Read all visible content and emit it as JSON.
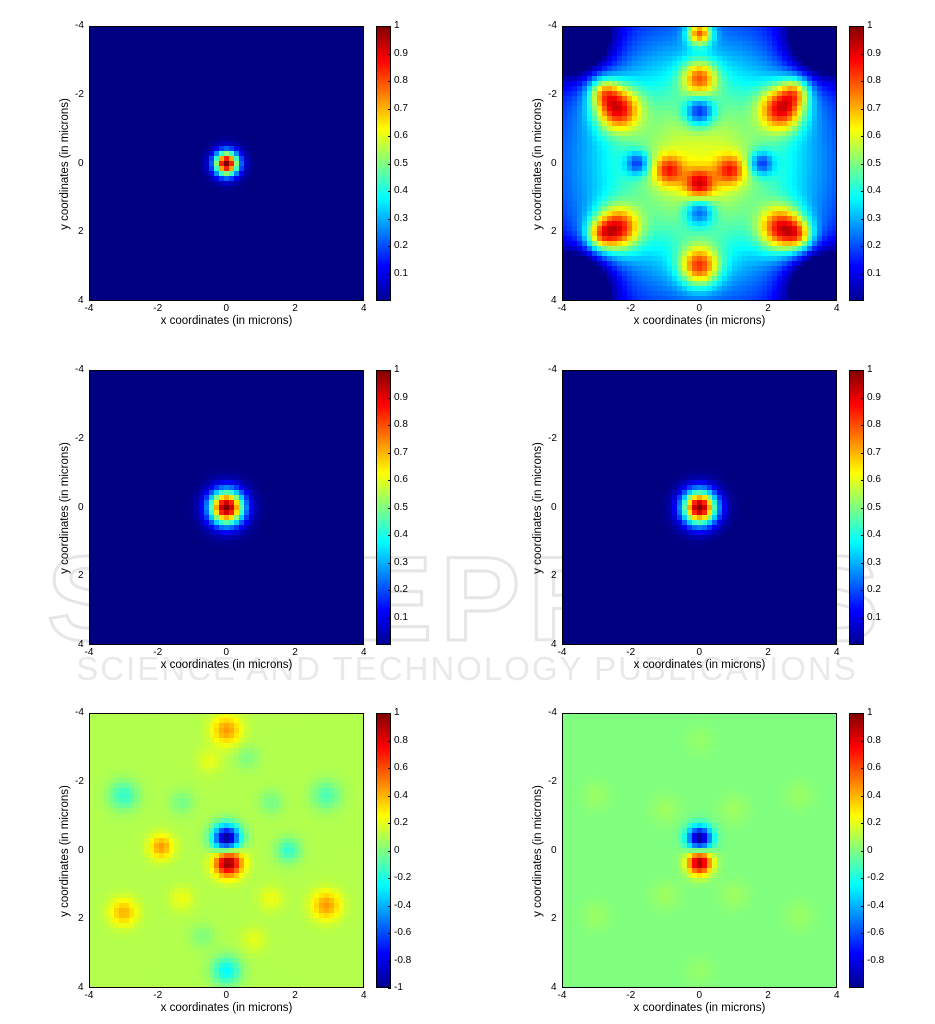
{
  "watermark": {
    "line1": "SCITEPRESS",
    "line2": "SCIENCE AND TECHNOLOGY PUBLICATIONS"
  },
  "chart_data": [
    {
      "type": "heatmap",
      "panel": "row1-left",
      "title": "",
      "xlabel": "x coordinates (in microns)",
      "ylabel": "y coordinates (in microns)",
      "xlim": [
        -4,
        4
      ],
      "ylim": [
        4,
        -4
      ],
      "xticks": [
        "-4",
        "-2",
        "0",
        "2",
        "4"
      ],
      "yticks": [
        "-4",
        "-2",
        "0",
        "2",
        "4"
      ],
      "colorbar": {
        "min": 0,
        "max": 1,
        "ticks": [
          "0.1",
          "0.2",
          "0.3",
          "0.4",
          "0.5",
          "0.6",
          "0.7",
          "0.8",
          "0.9",
          "1"
        ],
        "colormap": "jet"
      },
      "background_value": 0,
      "features": [
        {
          "x": 0,
          "y": 0,
          "sigma": 0.25,
          "value": 1
        }
      ]
    },
    {
      "type": "heatmap",
      "panel": "row1-right",
      "title": "",
      "xlabel": "x coordinates (in microns)",
      "ylabel": "y coordinates (in microns)",
      "xlim": [
        -4,
        4
      ],
      "ylim": [
        4,
        -4
      ],
      "xticks": [
        "-4",
        "-2",
        "0",
        "2",
        "4"
      ],
      "yticks": [
        "-4",
        "-2",
        "0",
        "2",
        "4"
      ],
      "colorbar": {
        "min": 0,
        "max": 1,
        "ticks": [
          "0.1",
          "0.2",
          "0.3",
          "0.4",
          "0.5",
          "0.6",
          "0.7",
          "0.8",
          "0.9",
          "1"
        ],
        "colormap": "jet"
      },
      "background_value": 0.05,
      "features": [
        {
          "x": 0,
          "y": 0,
          "sigma": 2.6,
          "value": 0.55
        },
        {
          "x": -2.4,
          "y": -1.6,
          "sigma": 0.45,
          "value": 0.55
        },
        {
          "x": 2.4,
          "y": -1.6,
          "sigma": 0.45,
          "value": 0.55
        },
        {
          "x": -2.4,
          "y": 1.9,
          "sigma": 0.45,
          "value": 0.55
        },
        {
          "x": 2.4,
          "y": 1.9,
          "sigma": 0.45,
          "value": 0.55
        },
        {
          "x": -2.8,
          "y": -2.1,
          "sigma": 0.3,
          "value": 0.3
        },
        {
          "x": 2.8,
          "y": -2.1,
          "sigma": 0.3,
          "value": 0.3
        },
        {
          "x": -2.9,
          "y": 2.1,
          "sigma": 0.3,
          "value": 0.3
        },
        {
          "x": 2.9,
          "y": 2.1,
          "sigma": 0.3,
          "value": 0.3
        },
        {
          "x": 0,
          "y": -3.8,
          "sigma": 0.25,
          "value": 0.55
        },
        {
          "x": 0,
          "y": -2.5,
          "sigma": 0.35,
          "value": 0.4
        },
        {
          "x": 0,
          "y": 3.0,
          "sigma": 0.4,
          "value": 0.5
        },
        {
          "x": 0,
          "y": 0.6,
          "sigma": 0.3,
          "value": 0.35
        },
        {
          "x": -0.9,
          "y": 0.2,
          "sigma": 0.3,
          "value": 0.3
        },
        {
          "x": 0.9,
          "y": 0.2,
          "sigma": 0.3,
          "value": 0.3
        },
        {
          "x": 0,
          "y": -1.5,
          "sigma": 0.3,
          "value": -0.35
        },
        {
          "x": 0,
          "y": 1.4,
          "sigma": 0.3,
          "value": -0.3
        },
        {
          "x": -1.8,
          "y": 0,
          "sigma": 0.25,
          "value": -0.3
        },
        {
          "x": 1.8,
          "y": 0,
          "sigma": 0.25,
          "value": -0.3
        },
        {
          "x": -3.6,
          "y": -3.6,
          "sigma": 0.7,
          "value": -0.45
        },
        {
          "x": 3.6,
          "y": -3.6,
          "sigma": 0.7,
          "value": -0.45
        },
        {
          "x": -3.6,
          "y": 3.6,
          "sigma": 0.7,
          "value": -0.45
        },
        {
          "x": 3.6,
          "y": 3.6,
          "sigma": 0.7,
          "value": -0.45
        }
      ]
    },
    {
      "type": "heatmap",
      "panel": "row2-left",
      "title": "",
      "xlabel": "x coordinates (in microns)",
      "ylabel": "y coordinates (in microns)",
      "xlim": [
        -4,
        4
      ],
      "ylim": [
        4,
        -4
      ],
      "xticks": [
        "-4",
        "-2",
        "0",
        "2",
        "4"
      ],
      "yticks": [
        "-4",
        "-2",
        "0",
        "2",
        "4"
      ],
      "colorbar": {
        "min": 0,
        "max": 1,
        "ticks": [
          "0.1",
          "0.2",
          "0.3",
          "0.4",
          "0.5",
          "0.6",
          "0.7",
          "0.8",
          "0.9",
          "1"
        ],
        "colormap": "jet"
      },
      "background_value": 0,
      "features": [
        {
          "x": 0,
          "y": 0,
          "sigma": 0.35,
          "value": 1
        }
      ]
    },
    {
      "type": "heatmap",
      "panel": "row2-right",
      "title": "",
      "xlabel": "x coordinates (in microns)",
      "ylabel": "y coordinates (in microns)",
      "xlim": [
        -4,
        4
      ],
      "ylim": [
        4,
        -4
      ],
      "xticks": [
        "-4",
        "-2",
        "0",
        "2",
        "4"
      ],
      "yticks": [
        "-4",
        "-2",
        "0",
        "2",
        "4"
      ],
      "colorbar": {
        "min": 0,
        "max": 1,
        "ticks": [
          "0.1",
          "0.2",
          "0.3",
          "0.4",
          "0.5",
          "0.6",
          "0.7",
          "0.8",
          "0.9",
          "1"
        ],
        "colormap": "jet"
      },
      "background_value": 0,
      "features": [
        {
          "x": 0,
          "y": 0,
          "sigma": 0.35,
          "value": 1
        }
      ]
    },
    {
      "type": "heatmap",
      "panel": "row3-left",
      "title": "",
      "xlabel": "x coordinates (in microns)",
      "ylabel": "y coordinates (in microns)",
      "xlim": [
        -4,
        4
      ],
      "ylim": [
        4,
        -4
      ],
      "xticks": [
        "-4",
        "-2",
        "0",
        "2",
        "4"
      ],
      "yticks": [
        "-4",
        "-2",
        "0",
        "2",
        "4"
      ],
      "colorbar": {
        "min": -1,
        "max": 1,
        "ticks": [
          "-1",
          "-0.8",
          "-0.6",
          "-0.4",
          "-0.2",
          "0",
          "0.2",
          "0.4",
          "0.6",
          "0.8",
          "1"
        ],
        "colormap": "jet"
      },
      "background_value": 0.1,
      "features": [
        {
          "x": 0,
          "y": -0.35,
          "sigma": 0.28,
          "value": -1.1
        },
        {
          "x": 0.05,
          "y": 0.35,
          "sigma": 0.28,
          "value": 0.9
        },
        {
          "x": 0,
          "y": -3.5,
          "sigma": 0.3,
          "value": 0.35
        },
        {
          "x": 0,
          "y": 3.5,
          "sigma": 0.3,
          "value": -0.35
        },
        {
          "x": -3.0,
          "y": -1.6,
          "sigma": 0.3,
          "value": -0.25
        },
        {
          "x": 2.9,
          "y": -1.6,
          "sigma": 0.3,
          "value": -0.2
        },
        {
          "x": -1.9,
          "y": -0.1,
          "sigma": 0.25,
          "value": 0.35
        },
        {
          "x": 1.8,
          "y": 0,
          "sigma": 0.25,
          "value": -0.25
        },
        {
          "x": -3.0,
          "y": 1.8,
          "sigma": 0.28,
          "value": 0.3
        },
        {
          "x": 2.9,
          "y": 1.6,
          "sigma": 0.3,
          "value": 0.35
        },
        {
          "x": -1.3,
          "y": -1.4,
          "sigma": 0.25,
          "value": -0.12
        },
        {
          "x": 1.3,
          "y": -1.4,
          "sigma": 0.25,
          "value": -0.12
        },
        {
          "x": -1.3,
          "y": 1.4,
          "sigma": 0.25,
          "value": 0.12
        },
        {
          "x": 1.3,
          "y": 1.4,
          "sigma": 0.25,
          "value": 0.12
        },
        {
          "x": -0.7,
          "y": 2.5,
          "sigma": 0.25,
          "value": -0.1
        },
        {
          "x": 0.8,
          "y": 2.6,
          "sigma": 0.25,
          "value": 0.1
        },
        {
          "x": -0.5,
          "y": -2.6,
          "sigma": 0.25,
          "value": 0.1
        },
        {
          "x": 0.6,
          "y": -2.7,
          "sigma": 0.25,
          "value": -0.1
        }
      ]
    },
    {
      "type": "heatmap",
      "panel": "row3-right",
      "title": "",
      "xlabel": "x coordinates (in microns)",
      "ylabel": "y coordinates (in microns)",
      "xlim": [
        -4,
        4
      ],
      "ylim": [
        4,
        -4
      ],
      "xticks": [
        "-4",
        "-2",
        "0",
        "2",
        "4"
      ],
      "yticks": [
        "-4",
        "-2",
        "0",
        "2",
        "4"
      ],
      "colorbar": {
        "min": -1,
        "max": 1,
        "ticks": [
          "-0.8",
          "-0.6",
          "-0.4",
          "-0.2",
          "0",
          "0.2",
          "0.4",
          "0.6",
          "0.8",
          "1"
        ],
        "colormap": "jet"
      },
      "background_value": 0,
      "features": [
        {
          "x": 0,
          "y": -0.35,
          "sigma": 0.25,
          "value": -1.0
        },
        {
          "x": 0,
          "y": 0.35,
          "sigma": 0.25,
          "value": 0.95
        },
        {
          "x": -1.0,
          "y": -1.2,
          "sigma": 0.3,
          "value": 0.06
        },
        {
          "x": 1.0,
          "y": -1.2,
          "sigma": 0.3,
          "value": 0.06
        },
        {
          "x": -1.0,
          "y": 1.3,
          "sigma": 0.3,
          "value": 0.06
        },
        {
          "x": 1.0,
          "y": 1.3,
          "sigma": 0.3,
          "value": 0.06
        },
        {
          "x": -3.0,
          "y": -1.6,
          "sigma": 0.3,
          "value": 0.05
        },
        {
          "x": 2.9,
          "y": -1.6,
          "sigma": 0.3,
          "value": 0.05
        },
        {
          "x": -3.0,
          "y": 1.9,
          "sigma": 0.3,
          "value": 0.05
        },
        {
          "x": 2.9,
          "y": 1.9,
          "sigma": 0.3,
          "value": 0.05
        },
        {
          "x": 0,
          "y": 3.5,
          "sigma": 0.3,
          "value": 0.04
        },
        {
          "x": 0,
          "y": -3.2,
          "sigma": 0.3,
          "value": 0.04
        }
      ]
    }
  ]
}
